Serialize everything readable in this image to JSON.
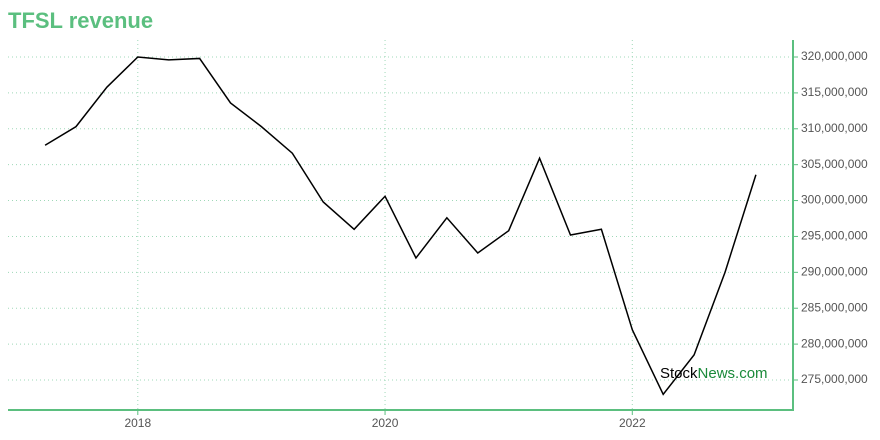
{
  "chart_data": {
    "type": "line",
    "title": "TFSL revenue",
    "watermark": [
      "Stock",
      "News.com"
    ],
    "x": [
      2017.25,
      2017.5,
      2017.75,
      2018.0,
      2018.25,
      2018.5,
      2018.75,
      2019.0,
      2019.25,
      2019.5,
      2019.75,
      2020.0,
      2020.25,
      2020.5,
      2020.75,
      2021.0,
      2021.25,
      2021.5,
      2021.75,
      2022.0,
      2022.25,
      2022.5,
      2022.75,
      2023.0
    ],
    "series": [
      {
        "name": "TFSL revenue",
        "color": "#000000",
        "values": [
          307700000,
          310300000,
          315800000,
          320000000,
          319600000,
          319800000,
          313600000,
          310300000,
          306600000,
          299800000,
          296000000,
          300600000,
          292000000,
          297600000,
          292700000,
          295800000,
          305900000,
          295200000,
          296000000,
          282000000,
          273000000,
          278500000,
          290000000,
          303600000
        ]
      }
    ],
    "xlim": [
      2016.95,
      2023.3
    ],
    "xticks": [
      2018,
      2020,
      2022
    ],
    "ylim": [
      270820000,
      322370000
    ],
    "yticks": [
      {
        "value": 275000000,
        "label": "275,000,000"
      },
      {
        "value": 280000000,
        "label": "280,000,000"
      },
      {
        "value": 285000000,
        "label": "285,000,000"
      },
      {
        "value": 290000000,
        "label": "290,000,000"
      },
      {
        "value": 295000000,
        "label": "295,000,000"
      },
      {
        "value": 300000000,
        "label": "300,000,000"
      },
      {
        "value": 305000000,
        "label": "305,000,000"
      },
      {
        "value": 310000000,
        "label": "310,000,000"
      },
      {
        "value": 315000000,
        "label": "315,000,000"
      },
      {
        "value": 320000000,
        "label": "320,000,000"
      }
    ],
    "grid": true,
    "axis_color": "#5bbf7f",
    "title_color": "#5bbf7f"
  }
}
